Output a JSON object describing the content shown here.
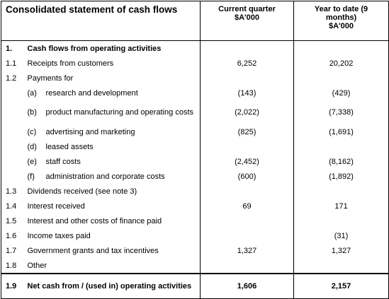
{
  "header": {
    "title": "Consolidated statement of cash flows",
    "current": [
      "Current quarter",
      "$A'000"
    ],
    "ytd": [
      "Year to date (9",
      "months)",
      "$A'000"
    ]
  },
  "rows": [
    {
      "num": "1.",
      "label": "Cash flows from operating activities",
      "bold": true
    },
    {
      "num": "1.1",
      "label": "Receipts from customers",
      "current": "6,252",
      "ytd": "20,202"
    },
    {
      "num": "1.2",
      "label": "Payments for"
    },
    {
      "item": "(a)",
      "label": "research and development",
      "current": "(143)",
      "ytd": "(429)"
    },
    {
      "item": "(b)",
      "label": "product manufacturing and operating costs",
      "current": "(2,022)",
      "ytd": "(7,338)"
    },
    {
      "item": "(c)",
      "label": "advertising and marketing",
      "current": "(825)",
      "ytd": "(1,691)"
    },
    {
      "item": "(d)",
      "label": "leased assets"
    },
    {
      "item": "(e)",
      "label": "staff costs",
      "current": "(2,452)",
      "ytd": "(8,162)"
    },
    {
      "item": "(f)",
      "label": "administration and corporate costs",
      "current": "(600)",
      "ytd": "(1,892)"
    },
    {
      "num": "1.3",
      "label": "Dividends received (see note 3)"
    },
    {
      "num": "1.4",
      "label": "Interest received",
      "current": "69",
      "ytd": "171"
    },
    {
      "num": "1.5",
      "label": "Interest and other costs of finance paid"
    },
    {
      "num": "1.6",
      "label": "Income taxes paid",
      "ytd": "(31)"
    },
    {
      "num": "1.7",
      "label": "Government grants and tax incentives",
      "current": "1,327",
      "ytd": "1,327"
    },
    {
      "num": "1.8",
      "label": "Other"
    },
    {
      "num": "1.9",
      "label": "Net cash from / (used in) operating activities",
      "current": "1,606",
      "ytd": "2,157",
      "bold": true
    }
  ]
}
